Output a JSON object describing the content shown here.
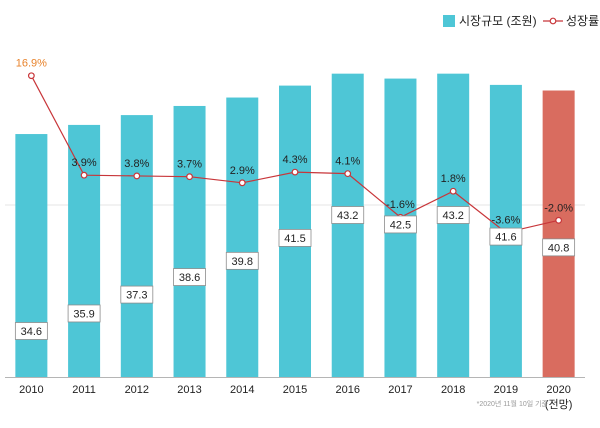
{
  "chart_data": {
    "type": "bar",
    "categories": [
      "2010",
      "2011",
      "2012",
      "2013",
      "2014",
      "2015",
      "2016",
      "2017",
      "2018",
      "2019",
      "2020"
    ],
    "category_sublabels": [
      "",
      "",
      "",
      "",
      "",
      "",
      "",
      "",
      "",
      "",
      "(전망)"
    ],
    "series": [
      {
        "name": "시장규모 (조원)",
        "type": "bar",
        "values": [
          34.6,
          35.9,
          37.3,
          38.6,
          39.8,
          41.5,
          43.2,
          42.5,
          43.2,
          41.6,
          40.8
        ],
        "value_labels": [
          "34.6",
          "35.9",
          "37.3",
          "38.6",
          "39.8",
          "41.5",
          "43.2",
          "42.5",
          "43.2",
          "41.6",
          "40.8"
        ]
      },
      {
        "name": "성장률",
        "type": "line",
        "values": [
          16.9,
          3.9,
          3.8,
          3.7,
          2.9,
          4.3,
          4.1,
          -1.6,
          1.8,
          -3.6,
          -2.0
        ],
        "value_labels": [
          "16.9%",
          "3.9%",
          "3.8%",
          "3.7%",
          "2.9%",
          "4.3%",
          "4.1%",
          "-1.6%",
          "1.8%",
          "-3.6%",
          "-2.0%"
        ]
      }
    ],
    "highlight_category": "2020",
    "colors": {
      "bar": "#4ec6d6",
      "bar_highlight": "#d96c5f",
      "line": "#c8363a",
      "first_label": "#e8822a",
      "text": "#222222",
      "grid": "#e4e4e4",
      "axis": "#b5b5b5",
      "note": "#9a9a9a"
    },
    "legend": {
      "position": "top-right",
      "items": [
        "시장규모 (조원)",
        "성장률"
      ]
    },
    "footnote": "*2020년 11월 10일 기준",
    "axes": {
      "bar_ylim": [
        0,
        46
      ],
      "line_ylim": [
        -20,
        20
      ],
      "grid": true
    }
  }
}
